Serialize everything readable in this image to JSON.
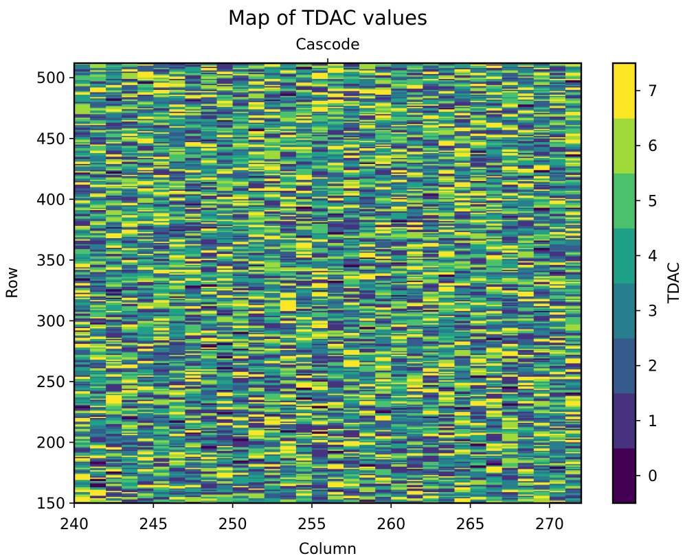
{
  "chart_data": {
    "type": "heatmap",
    "title": "Map of TDAC values",
    "subtitle": "Cascode",
    "xlabel": "Column",
    "ylabel": "Row",
    "colorbar_label": "TDAC",
    "x_range": [
      240,
      272
    ],
    "y_range": [
      150,
      512
    ],
    "x_ticks": [
      "240",
      "245",
      "250",
      "255",
      "260",
      "265",
      "270"
    ],
    "y_ticks": [
      "150",
      "200",
      "250",
      "300",
      "350",
      "400",
      "450",
      "500"
    ],
    "colorbar_ticks": [
      "0",
      "1",
      "2",
      "3",
      "4",
      "5",
      "6",
      "7"
    ],
    "value_levels": [
      0,
      1,
      2,
      3,
      4,
      5,
      6,
      7
    ],
    "colormap": [
      "#440154",
      "#46327e",
      "#365c8d",
      "#277f8e",
      "#1fa187",
      "#4ac16d",
      "#a0da39",
      "#fde725"
    ],
    "grid": false
  }
}
